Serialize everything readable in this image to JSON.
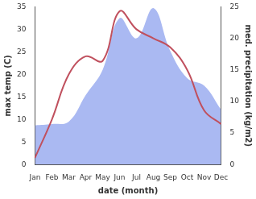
{
  "chart_data": {
    "type": "line",
    "x_label": "date (month)",
    "y_label": "max temp (C)",
    "y2_label": "med. precipitation (kg/m2)",
    "categories": [
      "Jan",
      "Feb",
      "Mar",
      "Apr",
      "May",
      "Jun",
      "Jul",
      "Aug",
      "Sep",
      "Oct",
      "Nov",
      "Dec"
    ],
    "series": [
      {
        "name": "med. precipitation",
        "type": "area",
        "axis": "y2",
        "color": "#aab9f2",
        "values": [
          6.2,
          6.4,
          6.8,
          11,
          15,
          23.2,
          20,
          24.8,
          18,
          13.7,
          12.5,
          8.7
        ]
      },
      {
        "name": "max temp",
        "type": "line",
        "axis": "y",
        "color": "#c0505e",
        "values": [
          1.5,
          10,
          20,
          24,
          23,
          34,
          30,
          28,
          26,
          21,
          12,
          9
        ]
      }
    ],
    "ylim": [
      0,
      35
    ],
    "yticks": [
      0,
      5,
      10,
      15,
      20,
      25,
      30,
      35
    ],
    "y2lim": [
      0,
      25
    ],
    "y2ticks": [
      0,
      5,
      10,
      15,
      20,
      25
    ],
    "grid": false
  }
}
